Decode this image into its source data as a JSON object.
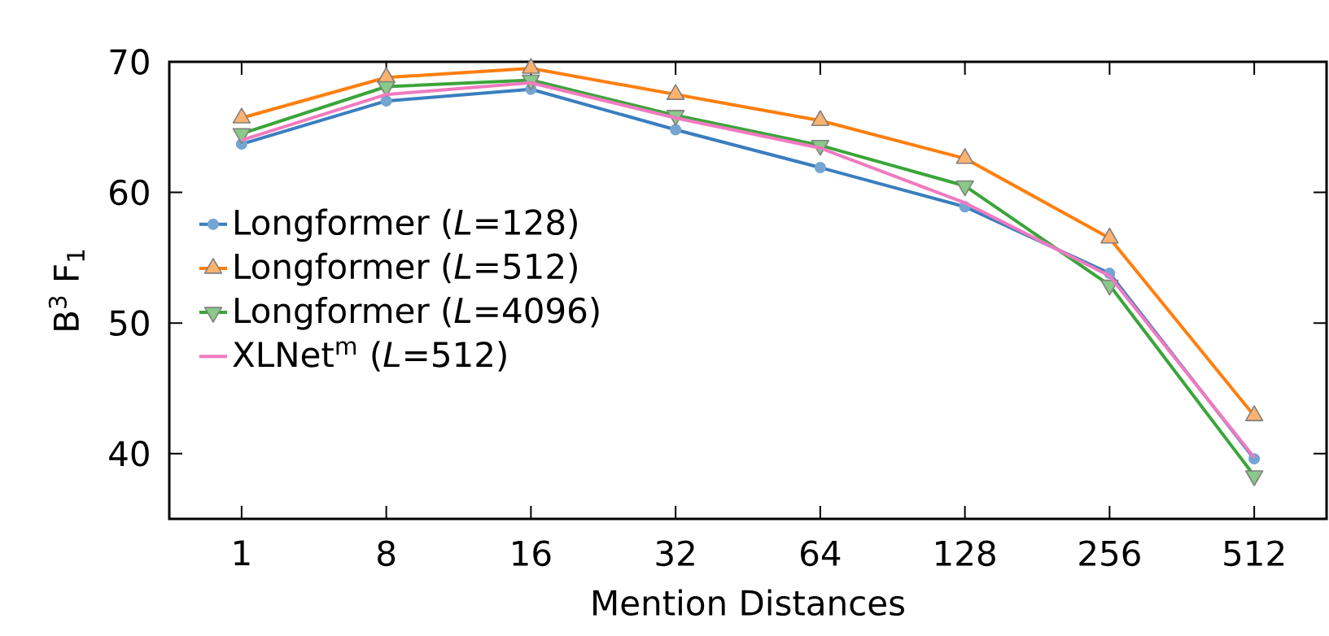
{
  "chart_data": {
    "type": "line",
    "xlabel": "Mention Distances",
    "ylabel": "B$^{3}$ F$_{1}$",
    "categories": [
      "1",
      "8",
      "16",
      "32",
      "64",
      "128",
      "256",
      "512"
    ],
    "ylim": [
      35,
      70
    ],
    "yticks": [
      40,
      50,
      60,
      70
    ],
    "grid": false,
    "legend": "left",
    "tick_labels": "xy",
    "series": [
      {
        "name": "Longformer (*L*=128)",
        "color": "#3a7ebf",
        "marker": "circle",
        "values": [
          63.7,
          67.0,
          67.9,
          64.8,
          61.9,
          58.9,
          53.8,
          39.6
        ]
      },
      {
        "name": "Longformer (*L*=512)",
        "color": "#ff7f0e",
        "marker": "triangle",
        "values": [
          65.7,
          68.8,
          69.5,
          67.5,
          65.5,
          62.6,
          56.5,
          42.9
        ]
      },
      {
        "name": "Longformer (*L*=4096)",
        "color": "#3aa53a",
        "marker": "triangle down",
        "values": [
          64.5,
          68.1,
          68.6,
          65.9,
          63.6,
          60.5,
          52.9,
          38.3
        ]
      },
      {
        "name": "XLNet$^{m}$ (*L*=512)",
        "color": "#f07ac0",
        "marker": "none",
        "values": [
          64.0,
          67.5,
          68.4,
          65.7,
          63.4,
          59.2,
          53.6,
          39.7
        ]
      }
    ]
  }
}
